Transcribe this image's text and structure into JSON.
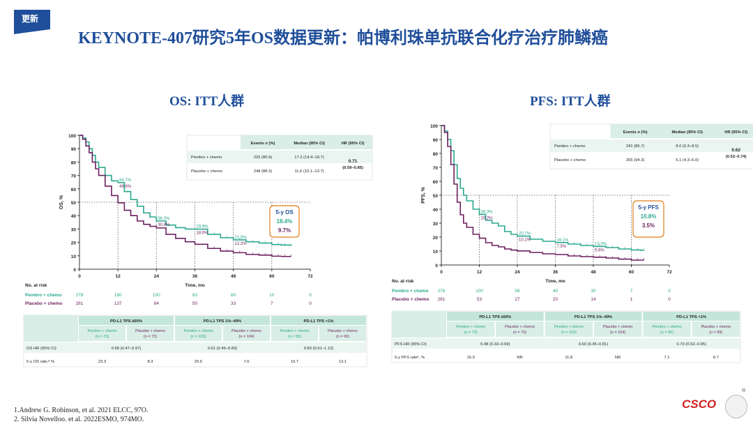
{
  "badge": "更新",
  "title": "KEYNOTE-407研究5年OS数据更新：帕博利珠单抗联合化疗治疗肺鳞癌",
  "colors": {
    "pembro": "#2aa88e",
    "placebo": "#6b1f5e",
    "accent": "#1f4e9a",
    "box_border": "#e07b1a"
  },
  "panels": [
    {
      "heading": "OS: ITT人群",
      "chart_data": {
        "type": "line",
        "ylabel": "OS, %",
        "xlabel": "Time, mo",
        "xlim": [
          0,
          72
        ],
        "ylim": [
          0,
          100
        ],
        "xticks": [
          0,
          12,
          24,
          36,
          48,
          60,
          72
        ],
        "yticks": [
          0,
          10,
          20,
          30,
          40,
          50,
          60,
          70,
          80,
          90,
          100
        ],
        "ref_line_y": 50,
        "series": [
          {
            "name": "Pembro + chemo",
            "color": "#2aa88e",
            "points": [
              [
                0,
                100
              ],
              [
                1,
                98
              ],
              [
                2,
                95
              ],
              [
                3,
                90
              ],
              [
                4,
                85
              ],
              [
                5,
                80
              ],
              [
                6,
                76
              ],
              [
                8,
                70
              ],
              [
                10,
                66
              ],
              [
                12,
                64.7
              ],
              [
                14,
                58
              ],
              [
                16,
                52
              ],
              [
                18,
                47
              ],
              [
                20,
                42
              ],
              [
                22,
                39
              ],
              [
                24,
                36
              ],
              [
                27,
                33
              ],
              [
                30,
                31
              ],
              [
                33,
                30
              ],
              [
                36,
                29.9
              ],
              [
                40,
                26
              ],
              [
                44,
                23.5
              ],
              [
                48,
                21.9
              ],
              [
                52,
                20.5
              ],
              [
                56,
                19.5
              ],
              [
                60,
                18.4
              ],
              [
                63,
                18
              ],
              [
                66,
                17.5
              ]
            ]
          },
          {
            "name": "Placebo + chemo",
            "color": "#6b1f5e",
            "points": [
              [
                0,
                100
              ],
              [
                1,
                97
              ],
              [
                2,
                92
              ],
              [
                3,
                87
              ],
              [
                4,
                80
              ],
              [
                5,
                75
              ],
              [
                6,
                70
              ],
              [
                8,
                62
              ],
              [
                10,
                55
              ],
              [
                12,
                49.6
              ],
              [
                14,
                44
              ],
              [
                16,
                40
              ],
              [
                18,
                36
              ],
              [
                20,
                33.5
              ],
              [
                22,
                32
              ],
              [
                24,
                30.8
              ],
              [
                27,
                26
              ],
              [
                30,
                23
              ],
              [
                33,
                20.5
              ],
              [
                36,
                18.6
              ],
              [
                40,
                15.5
              ],
              [
                44,
                13.5
              ],
              [
                48,
                12.3
              ],
              [
                52,
                11
              ],
              [
                56,
                10.5
              ],
              [
                60,
                9.7
              ],
              [
                63,
                9.5
              ],
              [
                66,
                9.5
              ]
            ]
          }
        ],
        "annotations": [
          {
            "x": 12,
            "top": "64.7%",
            "bottom": "49.6%"
          },
          {
            "x": 24,
            "top": "36.0%",
            "bottom": "30.8%"
          },
          {
            "x": 36,
            "top": "29.9%",
            "bottom": "18.6%"
          },
          {
            "x": 48,
            "top": "21.9%",
            "bottom": "12.3%"
          }
        ],
        "box": {
          "title": "5-y OS",
          "pembro": "18.4%",
          "placebo": "9.7%"
        },
        "hr_table": {
          "headers": [
            "Events n (%)",
            "Median (95% CI)",
            "HR (95% CI)"
          ],
          "rows": [
            {
              "name": "Pembro + chemo",
              "events": "225 (80.9)",
              "median": "17.2 (14.4–19.7)"
            },
            {
              "name": "Placebo + chemo",
              "events": "248 (88.3)",
              "median": "11.6 (10.1–13.7)"
            }
          ],
          "hr": "0.71",
          "hr_ci": "(0.59–0.85)"
        },
        "risk": {
          "label": "No. at risk",
          "rows": [
            {
              "name": "Pembro + chemo",
              "values": [
                "278",
                "180",
                "100",
                "83",
                "60",
                "10",
                "0"
              ]
            },
            {
              "name": "Placebo + chemo",
              "values": [
                "281",
                "137",
                "84",
                "50",
                "33",
                "7",
                "0"
              ]
            }
          ]
        }
      },
      "sub_table": {
        "groups": [
          "PD-L1 TPS ≥50%",
          "PD-L1 TPS 1%–49%",
          "PD-L1 TPS <1%"
        ],
        "cols": [
          [
            "Pembro + chemo",
            "(n = 73)"
          ],
          [
            "Placebo + chemo",
            "(n = 73)"
          ],
          [
            "Pembro + chemo",
            "(n = 103)"
          ],
          [
            "Placebo + chemo",
            "(n = 104)"
          ],
          [
            "Pembro + chemo",
            "(n = 95)"
          ],
          [
            "Placebo + chemo",
            "(n = 99)"
          ]
        ],
        "hr_label": "OS HR (95% CI)",
        "hr_values": [
          "0.68 (0.47–0.97)",
          "0.61 (0.45–0.83)",
          "0.83 (0.61–1.13)"
        ],
        "rate_label": "5-y OS rate,ª %",
        "rate_values": [
          "23.3",
          "8.3",
          "20.6",
          "7.6",
          "10.7",
          "13.1"
        ]
      }
    },
    {
      "heading": "PFS: ITT人群",
      "chart_data": {
        "type": "line",
        "ylabel": "PFS, %",
        "xlabel": "Time, mo",
        "xlim": [
          0,
          72
        ],
        "ylim": [
          0,
          100
        ],
        "xticks": [
          0,
          12,
          24,
          36,
          48,
          60,
          72
        ],
        "yticks": [
          0,
          10,
          20,
          30,
          40,
          50,
          60,
          70,
          80,
          90,
          100
        ],
        "ref_line_y": 50,
        "series": [
          {
            "name": "Pembro + chemo",
            "color": "#2aa88e",
            "points": [
              [
                0,
                100
              ],
              [
                1,
                96
              ],
              [
                2,
                90
              ],
              [
                3,
                82
              ],
              [
                4,
                72
              ],
              [
                5,
                62
              ],
              [
                6,
                55
              ],
              [
                7,
                50
              ],
              [
                8,
                46
              ],
              [
                10,
                40
              ],
              [
                12,
                36.3
              ],
              [
                14,
                32
              ],
              [
                16,
                30
              ],
              [
                18,
                28
              ],
              [
                20,
                24
              ],
              [
                22,
                22
              ],
              [
                24,
                20.7
              ],
              [
                28,
                18.5
              ],
              [
                32,
                17
              ],
              [
                36,
                16.1
              ],
              [
                40,
                15
              ],
              [
                44,
                14
              ],
              [
                48,
                13.3
              ],
              [
                52,
                12.5
              ],
              [
                56,
                11.5
              ],
              [
                60,
                10.8
              ],
              [
                63,
                10.5
              ],
              [
                64,
                10.5
              ]
            ]
          },
          {
            "name": "Placebo + chemo",
            "color": "#6b1f5e",
            "points": [
              [
                0,
                100
              ],
              [
                1,
                95
              ],
              [
                2,
                85
              ],
              [
                3,
                72
              ],
              [
                4,
                58
              ],
              [
                5,
                45
              ],
              [
                6,
                36
              ],
              [
                7,
                30
              ],
              [
                8,
                27
              ],
              [
                10,
                22
              ],
              [
                12,
                19.2
              ],
              [
                14,
                16
              ],
              [
                16,
                14
              ],
              [
                18,
                13
              ],
              [
                20,
                11.5
              ],
              [
                22,
                10.7
              ],
              [
                24,
                10.1
              ],
              [
                28,
                9
              ],
              [
                32,
                8
              ],
              [
                36,
                7.5
              ],
              [
                40,
                6.5
              ],
              [
                44,
                6
              ],
              [
                48,
                5.6
              ],
              [
                52,
                5
              ],
              [
                56,
                4.2
              ],
              [
                60,
                3.5
              ],
              [
                63,
                3.5
              ],
              [
                64,
                3.5
              ]
            ]
          }
        ],
        "annotations": [
          {
            "x": 12,
            "top": "36.3%",
            "bottom": "19.2%"
          },
          {
            "x": 24,
            "top": "20.7%",
            "bottom": "10.1%"
          },
          {
            "x": 36,
            "top": "16.1%",
            "bottom": "7.5%"
          },
          {
            "x": 48,
            "top": "13.3%",
            "bottom": "5.6%"
          }
        ],
        "box": {
          "title": "5-y PFS",
          "pembro": "10.8%",
          "placebo": "3.5%"
        },
        "hr_table": {
          "headers": [
            "Events n (%)",
            "Median (95% CI)",
            "HR (95% CI)"
          ],
          "rows": [
            {
              "name": "Pembro + chemo",
              "events": "241 (86.7)",
              "median": "8.0 (6.3–8.5)"
            },
            {
              "name": "Placebo + chemo",
              "events": "265 (94.3)",
              "median": "5.1 (4.3–6.0)"
            }
          ],
          "hr": "0.62",
          "hr_ci": "(0.52–0.74)"
        },
        "risk": {
          "label": "No. at risk",
          "rows": [
            {
              "name": "Pembro + chemo",
              "values": [
                "278",
                "100",
                "56",
                "40",
                "30",
                "7",
                "0"
              ]
            },
            {
              "name": "Placebo + chemo",
              "values": [
                "281",
                "53",
                "27",
                "20",
                "14",
                "1",
                "0"
              ]
            }
          ]
        }
      },
      "sub_table": {
        "groups": [
          "PD-L1 TPS ≥50%",
          "PD-L1 TPS 1%–49%",
          "PD-L1 TPS <1%"
        ],
        "cols": [
          [
            "Pembro + chemo",
            "(n = 73)"
          ],
          [
            "Placebo + chemo",
            "(n = 73)"
          ],
          [
            "Pembro + chemo",
            "(n = 103)"
          ],
          [
            "Placebo + chemo",
            "(n = 104)"
          ],
          [
            "Pembro + chemo",
            "(n = 95)"
          ],
          [
            "Placebo + chemo",
            "(n = 99)"
          ]
        ],
        "hr_label": "PFS HR (95% CI)",
        "hr_values": [
          "0.48 (0.33–0.69)",
          "0.60 (0.45–0.81)",
          "0.70 (0.52–0.95)"
        ],
        "rate_label": "5-y PFS rateᵇ, %",
        "rate_values": [
          "15.0",
          "NR",
          "11.8",
          "NR",
          "7.1",
          "6.7"
        ]
      }
    }
  ],
  "references": [
    "1.Andrew G. Robinson, et al. 2021 ELCC, 97O.",
    "2. Silvia Novelloo. et al. 2022ESMO, 974MO."
  ],
  "logo": "CSCO",
  "logo_mark": "®"
}
